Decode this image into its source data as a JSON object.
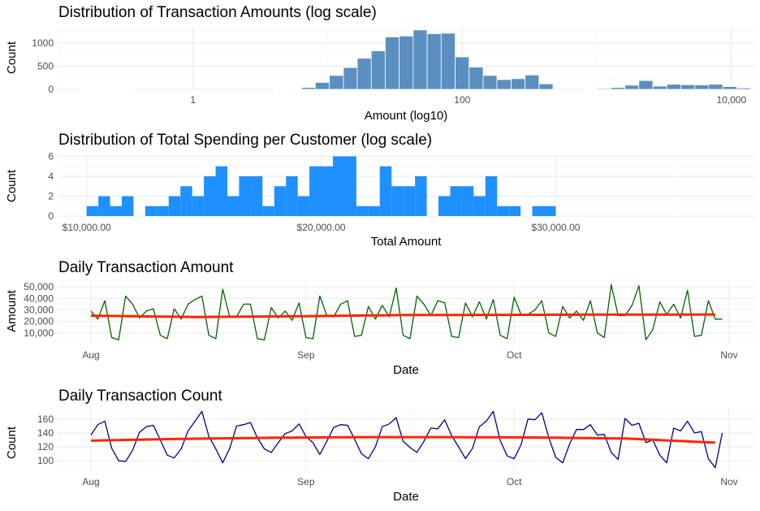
{
  "chart_data": [
    {
      "type": "bar",
      "title": "Distribution of Transaction Amounts (log scale)",
      "xlabel": "Amount (log10)",
      "ylabel": "Count",
      "x_scale": "log10",
      "xlim": [
        0.1,
        15000
      ],
      "ylim": [
        0,
        1330
      ],
      "x_ticks": [
        1,
        100,
        10000
      ],
      "x_tick_labels": [
        "1",
        "100",
        "10,000"
      ],
      "y_ticks": [
        0,
        500,
        1000
      ],
      "y_tick_labels": [
        "0",
        "500",
        "1000"
      ],
      "bar_color": "#5b8fbf",
      "grid": true,
      "bins": [
        {
          "x0": 0.146,
          "x1": 0.365,
          "count": 4
        },
        {
          "x0": 0.365,
          "x1": 0.592,
          "count": 0
        },
        {
          "x0": 0.592,
          "x1": 0.957,
          "count": 0
        },
        {
          "x0": 0.957,
          "x1": 1.544,
          "count": 0
        },
        {
          "x0": 1.544,
          "x1": 2.48,
          "count": 0
        },
        {
          "x0": 2.48,
          "x1": 4.0,
          "count": 0
        },
        {
          "x0": 4.0,
          "x1": 6.4,
          "count": 5
        },
        {
          "x0": 6.4,
          "x1": 8.1,
          "count": 40
        },
        {
          "x0": 8.1,
          "x1": 10.3,
          "count": 150
        },
        {
          "x0": 10.3,
          "x1": 13.1,
          "count": 300
        },
        {
          "x0": 13.1,
          "x1": 16.6,
          "count": 470
        },
        {
          "x0": 16.6,
          "x1": 21.1,
          "count": 670
        },
        {
          "x0": 21.1,
          "x1": 26.8,
          "count": 830
        },
        {
          "x0": 26.8,
          "x1": 34.0,
          "count": 1130
        },
        {
          "x0": 34.0,
          "x1": 43.2,
          "count": 1150
        },
        {
          "x0": 43.2,
          "x1": 54.9,
          "count": 1280
        },
        {
          "x0": 54.9,
          "x1": 69.7,
          "count": 1200
        },
        {
          "x0": 69.7,
          "x1": 88.6,
          "count": 1210
        },
        {
          "x0": 88.6,
          "x1": 112.5,
          "count": 700
        },
        {
          "x0": 112.5,
          "x1": 143,
          "count": 480
        },
        {
          "x0": 143,
          "x1": 181,
          "count": 300
        },
        {
          "x0": 181,
          "x1": 231,
          "count": 210
        },
        {
          "x0": 231,
          "x1": 293,
          "count": 230
        },
        {
          "x0": 293,
          "x1": 372,
          "count": 310
        },
        {
          "x0": 372,
          "x1": 472,
          "count": 120
        },
        {
          "x0": 780,
          "x1": 1000,
          "count": 10
        },
        {
          "x0": 1000,
          "x1": 1272,
          "count": 20
        },
        {
          "x0": 1272,
          "x1": 1615,
          "count": 40
        },
        {
          "x0": 1615,
          "x1": 2051,
          "count": 90
        },
        {
          "x0": 2051,
          "x1": 2606,
          "count": 190
        },
        {
          "x0": 2606,
          "x1": 3310,
          "count": 70
        },
        {
          "x0": 3310,
          "x1": 4205,
          "count": 110
        },
        {
          "x0": 4205,
          "x1": 5342,
          "count": 100
        },
        {
          "x0": 5342,
          "x1": 6785,
          "count": 95
        },
        {
          "x0": 6785,
          "x1": 8619,
          "count": 110
        },
        {
          "x0": 8619,
          "x1": 10948,
          "count": 60
        },
        {
          "x0": 10948,
          "x1": 13907,
          "count": 30
        }
      ]
    },
    {
      "type": "bar",
      "title": "Distribution of Total Spending per Customer (log scale)",
      "xlabel": "Total Amount",
      "ylabel": "Count",
      "xlim": [
        8800,
        38500
      ],
      "ylim": [
        0,
        6.2
      ],
      "x_ticks": [
        10000,
        20000,
        30000
      ],
      "x_tick_labels": [
        "$10,000.00",
        "$20,000.00",
        "$30,000.00"
      ],
      "y_ticks": [
        0,
        2,
        4,
        6
      ],
      "y_tick_labels": [
        "0",
        "2",
        "4",
        "6"
      ],
      "bar_color": "#1e90ff",
      "grid": true,
      "bin_start": 9500,
      "bin_width": 500,
      "counts": [
        0,
        1,
        2,
        1,
        2,
        0,
        1,
        1,
        2,
        3,
        2,
        4,
        5,
        2,
        4,
        4,
        1,
        3,
        4,
        2,
        5,
        5,
        6,
        6,
        1,
        1,
        5,
        3,
        3,
        4,
        0,
        2,
        3,
        3,
        2,
        4,
        1,
        1,
        0,
        1,
        1
      ]
    },
    {
      "type": "line",
      "title": "Daily Transaction Amount",
      "xlabel": "Date",
      "ylabel": "Amount",
      "x_ticks": [
        "Aug",
        "Sep",
        "Oct",
        "Nov"
      ],
      "y_ticks": [
        10000,
        20000,
        30000,
        40000,
        50000
      ],
      "y_tick_labels": [
        "10,000",
        "20,000",
        "30,000",
        "40,000",
        "50,000"
      ],
      "ylim": [
        0,
        55000
      ],
      "grid": true,
      "series": [
        {
          "color": "#006400",
          "values": [
            29000,
            22000,
            38000,
            6000,
            4000,
            42000,
            35000,
            23000,
            29000,
            31000,
            8000,
            5000,
            31000,
            22000,
            35000,
            39000,
            42000,
            8000,
            5000,
            48000,
            24000,
            24000,
            35000,
            35000,
            5000,
            4000,
            32000,
            23000,
            29000,
            21000,
            36000,
            6000,
            5000,
            42000,
            25000,
            24000,
            35000,
            38000,
            7000,
            8000,
            33000,
            22000,
            34000,
            24000,
            49000,
            8000,
            5000,
            42000,
            35000,
            25000,
            38000,
            36000,
            7000,
            6000,
            36000,
            24000,
            37000,
            22000,
            39000,
            8000,
            5000,
            41000,
            26000,
            26000,
            30000,
            38000,
            10000,
            7000,
            33000,
            23000,
            29000,
            21000,
            38000,
            10000,
            6000,
            52000,
            25000,
            25000,
            34000,
            51000,
            4000,
            13000,
            37000,
            26000,
            35000,
            23000,
            47000,
            7000,
            8000,
            38000,
            22000,
            22000
          ]
        },
        {
          "color": "#ff2400",
          "trend": true,
          "values": [
            25000,
            23800,
            24500,
            25500,
            25700,
            25900,
            26000
          ]
        }
      ]
    },
    {
      "type": "line",
      "title": "Daily Transaction Count",
      "xlabel": "Date",
      "ylabel": "Count",
      "x_ticks": [
        "Aug",
        "Sep",
        "Oct",
        "Nov"
      ],
      "y_ticks": [
        100,
        120,
        140,
        160
      ],
      "y_tick_labels": [
        "100",
        "120",
        "140",
        "160"
      ],
      "ylim": [
        85,
        175
      ],
      "grid": true,
      "series": [
        {
          "color": "#00008b",
          "values": [
            137,
            152,
            157,
            118,
            100,
            99,
            115,
            141,
            149,
            151,
            130,
            108,
            104,
            117,
            143,
            157,
            171,
            135,
            117,
            97,
            118,
            150,
            152,
            155,
            133,
            117,
            112,
            126,
            139,
            143,
            153,
            135,
            126,
            109,
            128,
            148,
            152,
            151,
            131,
            110,
            103,
            120,
            149,
            153,
            162,
            128,
            119,
            112,
            128,
            147,
            146,
            159,
            136,
            120,
            103,
            118,
            149,
            157,
            171,
            129,
            107,
            103,
            123,
            160,
            159,
            169,
            133,
            105,
            97,
            124,
            145,
            145,
            152,
            137,
            138,
            112,
            102,
            161,
            151,
            154,
            126,
            130,
            108,
            97,
            147,
            143,
            157,
            140,
            142,
            103,
            90,
            140
          ]
        },
        {
          "color": "#ff2400",
          "trend": true,
          "values": [
            129,
            131.5,
            133,
            134,
            134,
            133.5,
            132,
            126
          ]
        }
      ]
    }
  ]
}
